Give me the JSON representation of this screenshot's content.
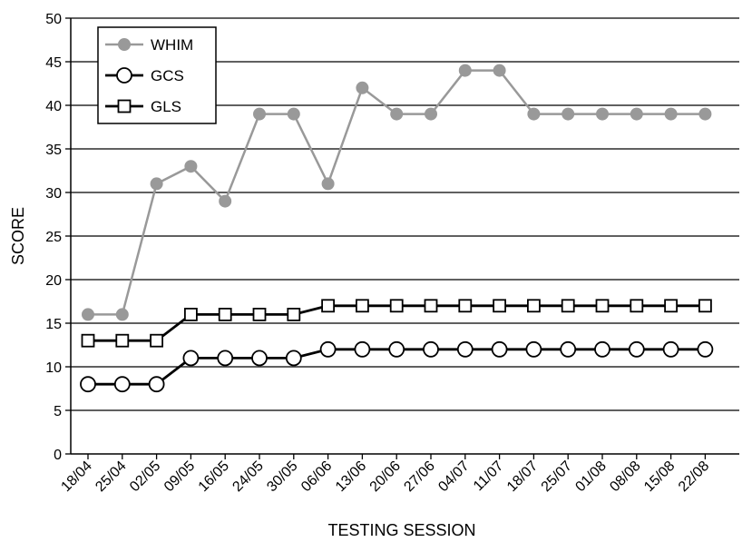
{
  "chart_data": {
    "type": "line",
    "title": "",
    "xlabel": "TESTING SESSION",
    "ylabel": "SCORE",
    "ylim": [
      0,
      50
    ],
    "y_ticks": [
      0,
      5,
      10,
      15,
      20,
      25,
      30,
      35,
      40,
      45,
      50
    ],
    "grid": "horizontal",
    "legend_position": "top-left",
    "categories": [
      "18/04",
      "25/04",
      "02/05",
      "09/05",
      "16/05",
      "24/05",
      "30/05",
      "06/06",
      "13/06",
      "20/06",
      "27/06",
      "04/07",
      "11/07",
      "18/07",
      "25/07",
      "01/08",
      "08/08",
      "15/08",
      "22/08"
    ],
    "series": [
      {
        "name": "WHIM",
        "marker": "filled-circle",
        "color": "#999999",
        "values": [
          16,
          16,
          31,
          33,
          29,
          39,
          39,
          31,
          42,
          39,
          39,
          44,
          44,
          39,
          39,
          39,
          39,
          39,
          39
        ]
      },
      {
        "name": "GCS",
        "marker": "open-circle",
        "color": "#000000",
        "values": [
          8,
          8,
          8,
          11,
          11,
          11,
          11,
          12,
          12,
          12,
          12,
          12,
          12,
          12,
          12,
          12,
          12,
          12,
          12
        ]
      },
      {
        "name": "GLS",
        "marker": "open-square",
        "color": "#000000",
        "values": [
          13,
          13,
          13,
          16,
          16,
          16,
          16,
          17,
          17,
          17,
          17,
          17,
          17,
          17,
          17,
          17,
          17,
          17,
          17
        ]
      }
    ]
  }
}
